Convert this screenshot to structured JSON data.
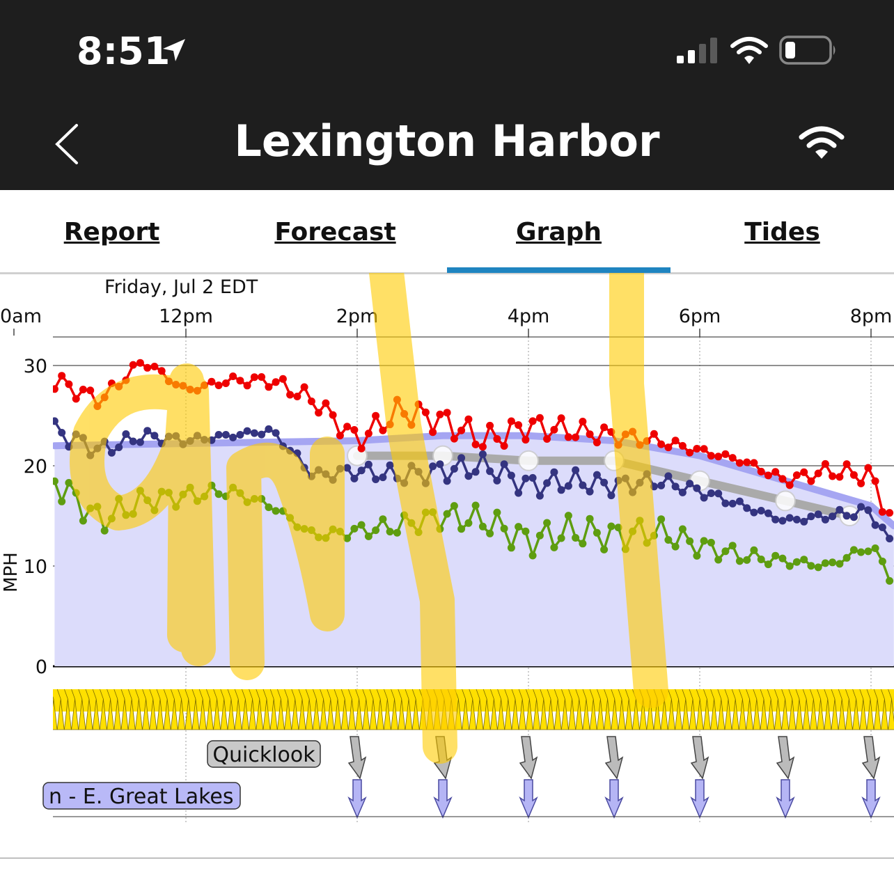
{
  "status_bar": {
    "time": "8:51",
    "location_icon": "location-arrow-icon",
    "signal_icon": "cellular-signal-icon",
    "wifi_icon": "wifi-icon",
    "battery_icon": "battery-low-icon"
  },
  "nav": {
    "title": "Lexington Harbor",
    "back_icon": "chevron-left-icon",
    "station_icon": "wifi-icon"
  },
  "tabs": [
    {
      "label": "Report"
    },
    {
      "label": "Forecast"
    },
    {
      "label": "Graph",
      "active": true
    },
    {
      "label": "Tides"
    }
  ],
  "colors": {
    "gust": "#ee0000",
    "average": "#343480",
    "lull": "#5e9d10",
    "forecast_fill": "#dcdcfb",
    "forecast_line": "#a5a5f2",
    "quicklook_line": "#aaaaaa",
    "direction_band": "#ffe000",
    "accent": "#1f84c0"
  },
  "chart_data": {
    "type": "line",
    "date_label": "Friday, Jul 2 EDT",
    "x_tick_labels": [
      "0am",
      "12pm",
      "2pm",
      "4pm",
      "6pm",
      "8pm"
    ],
    "xlim": [
      "10:28",
      "20:16"
    ],
    "ylabel": "MPH",
    "ylim": [
      0,
      33
    ],
    "y_ticks": [
      0,
      10,
      20,
      30
    ],
    "grid": true,
    "legend_labels": [
      "Quicklook",
      "n - E. Great Lakes"
    ],
    "series": [
      {
        "role": "gust",
        "x": [
          "10:28",
          "11:00",
          "11:30",
          "12:00",
          "12:30",
          "13:00",
          "13:30",
          "14:00",
          "14:30",
          "15:00",
          "15:30",
          "16:00",
          "16:30",
          "17:00",
          "17:30",
          "18:00",
          "18:30",
          "19:00",
          "19:30",
          "20:00",
          "20:16"
        ],
        "values": [
          28.5,
          26.5,
          30.5,
          27.5,
          28.5,
          28.5,
          26.5,
          22.5,
          25.5,
          24.5,
          22.5,
          24.0,
          23.5,
          23.0,
          22.5,
          21.5,
          20.5,
          18.5,
          19.5,
          19.0,
          14.0
        ]
      },
      {
        "role": "average",
        "x": [
          "10:28",
          "11:00",
          "11:30",
          "12:00",
          "12:30",
          "13:00",
          "13:30",
          "14:00",
          "14:30",
          "15:00",
          "15:30",
          "16:00",
          "16:30",
          "17:00",
          "17:30",
          "18:00",
          "18:30",
          "19:00",
          "19:30",
          "20:00",
          "20:16"
        ],
        "values": [
          23.5,
          21.5,
          23.0,
          22.5,
          23.0,
          23.5,
          19.0,
          19.5,
          19.0,
          19.5,
          20.0,
          18.0,
          18.5,
          18.0,
          18.5,
          17.5,
          16.0,
          14.5,
          15.0,
          15.5,
          11.5
        ]
      },
      {
        "role": "lull",
        "x": [
          "10:28",
          "11:00",
          "11:30",
          "12:00",
          "12:30",
          "13:00",
          "13:30",
          "14:00",
          "14:30",
          "15:00",
          "15:30",
          "16:00",
          "16:30",
          "17:00",
          "17:30",
          "18:00",
          "18:30",
          "19:00",
          "19:30",
          "20:00",
          "20:16"
        ],
        "values": [
          18.5,
          14.5,
          16.5,
          17.0,
          17.5,
          16.0,
          13.0,
          13.5,
          14.0,
          15.0,
          14.5,
          12.5,
          13.5,
          13.0,
          13.5,
          12.0,
          11.0,
          10.5,
          10.0,
          12.0,
          8.5
        ]
      },
      {
        "role": "forecast",
        "x": [
          "10:28",
          "14:00",
          "15:00",
          "16:00",
          "17:00",
          "18:00",
          "19:00",
          "20:00",
          "20:16"
        ],
        "values": [
          22.0,
          22.5,
          23.0,
          23.0,
          22.5,
          21.0,
          18.5,
          16.0,
          14.0
        ]
      },
      {
        "role": "quicklook",
        "x": [
          "14:00",
          "15:00",
          "16:00",
          "17:00",
          "18:00",
          "19:00",
          "19:45"
        ],
        "values": [
          21.0,
          21.0,
          20.5,
          20.5,
          18.5,
          16.5,
          15.0
        ]
      }
    ]
  }
}
